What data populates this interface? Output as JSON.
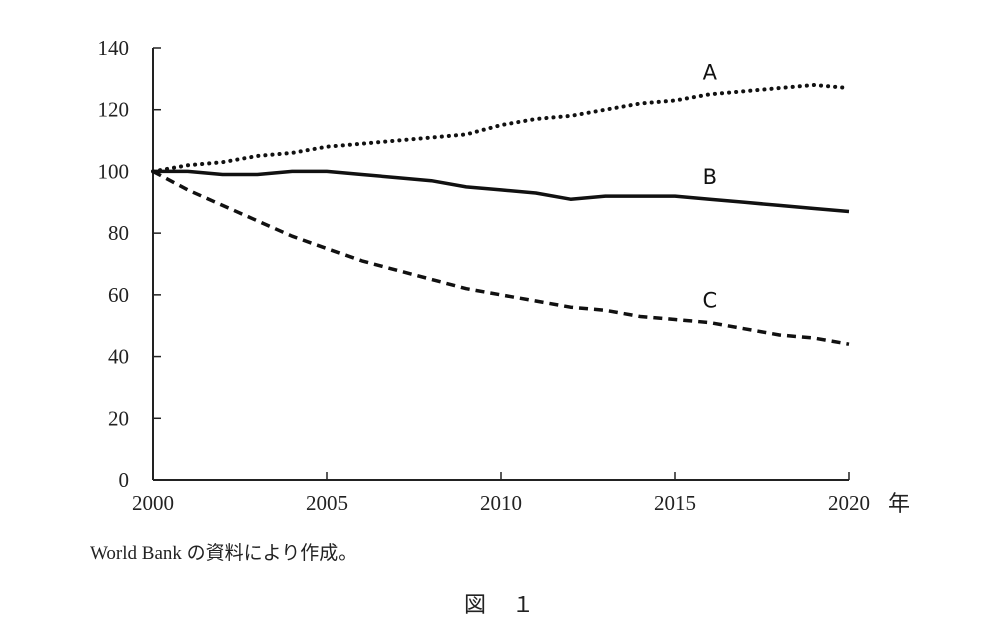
{
  "chart_data": {
    "type": "line",
    "title": "",
    "xlabel": "年",
    "ylabel": "",
    "xlim": [
      2000,
      2020
    ],
    "ylim": [
      0,
      140
    ],
    "x_ticks": [
      "2000",
      "2005",
      "2010",
      "2015",
      "2020"
    ],
    "y_ticks": [
      "0",
      "20",
      "40",
      "60",
      "80",
      "100",
      "120",
      "140"
    ],
    "grid": false,
    "legend": "labels placed on lines",
    "x": [
      2000,
      2001,
      2002,
      2003,
      2004,
      2005,
      2006,
      2007,
      2008,
      2009,
      2010,
      2011,
      2012,
      2013,
      2014,
      2015,
      2016,
      2017,
      2018,
      2019,
      2020
    ],
    "series": [
      {
        "name": "A",
        "style": "dotted",
        "values": [
          100,
          102,
          103,
          105,
          106,
          108,
          109,
          110,
          111,
          112,
          115,
          117,
          118,
          120,
          122,
          123,
          125,
          126,
          127,
          128,
          127
        ]
      },
      {
        "name": "B",
        "style": "solid",
        "values": [
          100,
          100,
          99,
          99,
          100,
          100,
          99,
          98,
          97,
          95,
          94,
          93,
          91,
          92,
          92,
          92,
          91,
          90,
          89,
          88,
          87
        ]
      },
      {
        "name": "C",
        "style": "dashed",
        "values": [
          100,
          94,
          89,
          84,
          79,
          75,
          71,
          68,
          65,
          62,
          60,
          58,
          56,
          55,
          53,
          52,
          51,
          49,
          47,
          46,
          44
        ]
      }
    ],
    "line_color": "#111111"
  },
  "source_note": "World Bank の資料により作成。",
  "figure_caption": "図　１"
}
